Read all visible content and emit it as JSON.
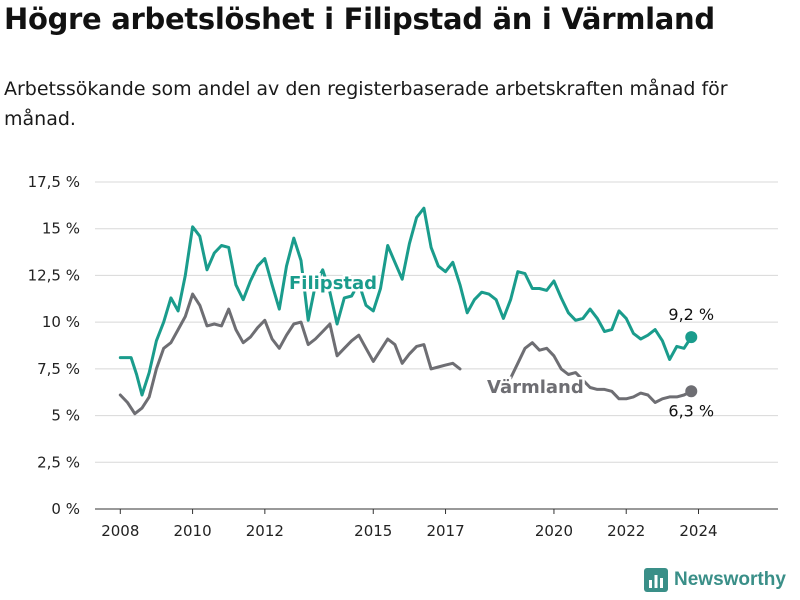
{
  "title": "Högre arbetslöshet i Filipstad än i Värmland",
  "subtitle": "Arbetssökande som andel av den registerbaserade arbetskraften månad för månad.",
  "brand": {
    "name": "Newsworthy",
    "icon": "bar-chart-icon"
  },
  "chart_data": {
    "type": "line",
    "y_ticks": [
      "0 %",
      "2,5 %",
      "5 %",
      "7,5 %",
      "10 %",
      "12,5 %",
      "15 %",
      "17,5 %"
    ],
    "x_ticks": [
      "2008",
      "2010",
      "2012",
      "2015",
      "2017",
      "2020",
      "2022",
      "2024"
    ],
    "ylim": [
      0,
      17.5
    ],
    "xlim": [
      2007.3,
      2026.2
    ],
    "grid": true,
    "legend": "inline labels",
    "series": [
      {
        "name": "Filipstad",
        "color": "#1a9c8c",
        "end_label": "9,2 %",
        "points": [
          [
            2008.0,
            8.1
          ],
          [
            2008.3,
            8.1
          ],
          [
            2008.45,
            7.2
          ],
          [
            2008.6,
            6.1
          ],
          [
            2008.8,
            7.3
          ],
          [
            2009.0,
            9.0
          ],
          [
            2009.2,
            10.0
          ],
          [
            2009.4,
            11.3
          ],
          [
            2009.6,
            10.6
          ],
          [
            2009.8,
            12.5
          ],
          [
            2010.0,
            15.1
          ],
          [
            2010.2,
            14.6
          ],
          [
            2010.4,
            12.8
          ],
          [
            2010.6,
            13.7
          ],
          [
            2010.8,
            14.1
          ],
          [
            2011.0,
            14.0
          ],
          [
            2011.2,
            12.0
          ],
          [
            2011.4,
            11.2
          ],
          [
            2011.6,
            12.2
          ],
          [
            2011.8,
            13.0
          ],
          [
            2012.0,
            13.4
          ],
          [
            2012.2,
            12.0
          ],
          [
            2012.4,
            10.7
          ],
          [
            2012.6,
            13.0
          ],
          [
            2012.8,
            14.5
          ],
          [
            2013.0,
            13.3
          ],
          [
            2013.2,
            10.1
          ],
          [
            2013.4,
            12.0
          ],
          [
            2013.6,
            12.8
          ],
          [
            2013.8,
            11.6
          ],
          [
            2014.0,
            9.9
          ],
          [
            2014.2,
            11.3
          ],
          [
            2014.4,
            11.4
          ],
          [
            2014.6,
            12.1
          ],
          [
            2014.8,
            10.9
          ],
          [
            2015.0,
            10.6
          ],
          [
            2015.2,
            11.8
          ],
          [
            2015.4,
            14.1
          ],
          [
            2015.6,
            13.2
          ],
          [
            2015.8,
            12.3
          ],
          [
            2016.0,
            14.2
          ],
          [
            2016.2,
            15.6
          ],
          [
            2016.4,
            16.1
          ],
          [
            2016.6,
            14.0
          ],
          [
            2016.8,
            13.0
          ],
          [
            2017.0,
            12.7
          ],
          [
            2017.2,
            13.2
          ],
          [
            2017.4,
            12.0
          ],
          [
            2017.6,
            10.5
          ],
          [
            2017.8,
            11.2
          ],
          [
            2018.0,
            11.6
          ],
          [
            2018.2,
            11.5
          ],
          [
            2018.4,
            11.2
          ],
          [
            2018.6,
            10.2
          ],
          [
            2018.8,
            11.2
          ],
          [
            2019.0,
            12.7
          ],
          [
            2019.2,
            12.6
          ],
          [
            2019.4,
            11.8
          ],
          [
            2019.6,
            11.8
          ],
          [
            2019.8,
            11.7
          ],
          [
            2020.0,
            12.2
          ],
          [
            2020.2,
            11.3
          ],
          [
            2020.4,
            10.5
          ],
          [
            2020.6,
            10.1
          ],
          [
            2020.8,
            10.2
          ],
          [
            2021.0,
            10.7
          ],
          [
            2021.2,
            10.2
          ],
          [
            2021.4,
            9.5
          ],
          [
            2021.6,
            9.6
          ],
          [
            2021.8,
            10.6
          ],
          [
            2022.0,
            10.2
          ],
          [
            2022.2,
            9.4
          ],
          [
            2022.4,
            9.1
          ],
          [
            2022.6,
            9.3
          ],
          [
            2022.8,
            9.6
          ],
          [
            2023.0,
            9.0
          ],
          [
            2023.2,
            8.0
          ],
          [
            2023.4,
            8.7
          ],
          [
            2023.6,
            8.6
          ],
          [
            2023.8,
            9.2
          ]
        ]
      },
      {
        "name": "Värmland",
        "color": "#6e6e73",
        "end_label": "6,3 %",
        "points": [
          [
            2008.0,
            6.1
          ],
          [
            2008.2,
            5.7
          ],
          [
            2008.4,
            5.1
          ],
          [
            2008.6,
            5.4
          ],
          [
            2008.8,
            6.0
          ],
          [
            2009.0,
            7.5
          ],
          [
            2009.2,
            8.6
          ],
          [
            2009.4,
            8.9
          ],
          [
            2009.6,
            9.6
          ],
          [
            2009.8,
            10.3
          ],
          [
            2010.0,
            11.5
          ],
          [
            2010.2,
            10.9
          ],
          [
            2010.4,
            9.8
          ],
          [
            2010.6,
            9.9
          ],
          [
            2010.8,
            9.8
          ],
          [
            2011.0,
            10.7
          ],
          [
            2011.2,
            9.6
          ],
          [
            2011.4,
            8.9
          ],
          [
            2011.6,
            9.2
          ],
          [
            2011.8,
            9.7
          ],
          [
            2012.0,
            10.1
          ],
          [
            2012.2,
            9.1
          ],
          [
            2012.4,
            8.6
          ],
          [
            2012.6,
            9.3
          ],
          [
            2012.8,
            9.9
          ],
          [
            2013.0,
            10.0
          ],
          [
            2013.2,
            8.8
          ],
          [
            2013.4,
            9.1
          ],
          [
            2013.6,
            9.5
          ],
          [
            2013.8,
            9.9
          ],
          [
            2014.0,
            8.2
          ],
          [
            2014.2,
            8.6
          ],
          [
            2014.4,
            9.0
          ],
          [
            2014.6,
            9.3
          ],
          [
            2014.8,
            8.6
          ],
          [
            2015.0,
            7.9
          ],
          [
            2015.2,
            8.5
          ],
          [
            2015.4,
            9.1
          ],
          [
            2015.6,
            8.8
          ],
          [
            2015.8,
            7.8
          ],
          [
            2016.0,
            8.3
          ],
          [
            2016.2,
            8.7
          ],
          [
            2016.4,
            8.8
          ],
          [
            2016.6,
            7.5
          ],
          [
            2016.8,
            7.6
          ],
          [
            2017.0,
            7.7
          ],
          [
            2017.2,
            7.8
          ],
          [
            2017.4,
            7.5
          ],
          null,
          [
            2018.8,
            7.0
          ],
          [
            2019.0,
            7.8
          ],
          [
            2019.2,
            8.6
          ],
          [
            2019.4,
            8.9
          ],
          [
            2019.6,
            8.5
          ],
          [
            2019.8,
            8.6
          ],
          [
            2020.0,
            8.2
          ],
          [
            2020.2,
            7.5
          ],
          [
            2020.4,
            7.2
          ],
          [
            2020.6,
            7.3
          ],
          [
            2020.8,
            6.9
          ],
          [
            2021.0,
            6.5
          ],
          [
            2021.2,
            6.4
          ],
          [
            2021.4,
            6.4
          ],
          [
            2021.6,
            6.3
          ],
          [
            2021.8,
            5.9
          ],
          [
            2022.0,
            5.9
          ],
          [
            2022.2,
            6.0
          ],
          [
            2022.4,
            6.2
          ],
          [
            2022.6,
            6.1
          ],
          [
            2022.8,
            5.7
          ],
          [
            2023.0,
            5.9
          ],
          [
            2023.2,
            6.0
          ],
          [
            2023.4,
            6.0
          ],
          [
            2023.6,
            6.1
          ],
          [
            2023.8,
            6.3
          ]
        ]
      }
    ]
  }
}
